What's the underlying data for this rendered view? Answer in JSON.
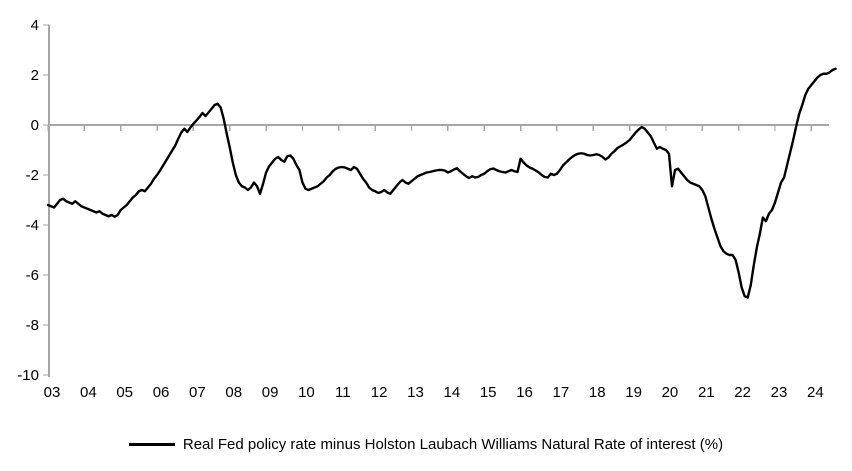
{
  "chart_data": {
    "type": "line",
    "title": "",
    "xlabel": "",
    "ylabel": "",
    "ylim": [
      -10,
      4
    ],
    "y_ticks": [
      4,
      2,
      0,
      -2,
      -4,
      -6,
      -8,
      -10
    ],
    "x_tick_labels": [
      "03",
      "04",
      "05",
      "06",
      "07",
      "08",
      "09",
      "10",
      "11",
      "12",
      "13",
      "14",
      "15",
      "16",
      "17",
      "18",
      "19",
      "20",
      "21",
      "22",
      "23",
      "24"
    ],
    "grid": false,
    "zero_line": true,
    "legend_position": "bottom",
    "line_color": "#000000",
    "axis_color": "#a6a6a6",
    "background_color": "#ffffff",
    "series": [
      {
        "name": "Real Fed policy rate minus Holston Laubach Williams Natural Rate of interest (%)",
        "color": "#000000",
        "x_start": "2003-01",
        "frequency": "monthly",
        "values": [
          -3.2,
          -3.25,
          -3.3,
          -3.15,
          -3.0,
          -2.95,
          -3.05,
          -3.1,
          -3.15,
          -3.05,
          -3.15,
          -3.25,
          -3.3,
          -3.35,
          -3.4,
          -3.45,
          -3.5,
          -3.45,
          -3.55,
          -3.6,
          -3.65,
          -3.6,
          -3.67,
          -3.6,
          -3.4,
          -3.3,
          -3.2,
          -3.05,
          -2.9,
          -2.8,
          -2.65,
          -2.6,
          -2.65,
          -2.5,
          -2.35,
          -2.15,
          -2.0,
          -1.82,
          -1.62,
          -1.42,
          -1.22,
          -1.02,
          -0.82,
          -0.55,
          -0.3,
          -0.15,
          -0.28,
          -0.1,
          0.05,
          0.18,
          0.32,
          0.48,
          0.36,
          0.5,
          0.65,
          0.8,
          0.85,
          0.7,
          0.25,
          -0.35,
          -0.9,
          -1.5,
          -2.0,
          -2.3,
          -2.45,
          -2.5,
          -2.6,
          -2.5,
          -2.3,
          -2.45,
          -2.75,
          -2.35,
          -1.9,
          -1.65,
          -1.5,
          -1.35,
          -1.28,
          -1.4,
          -1.47,
          -1.25,
          -1.22,
          -1.35,
          -1.6,
          -1.8,
          -2.3,
          -2.55,
          -2.6,
          -2.55,
          -2.5,
          -2.45,
          -2.35,
          -2.25,
          -2.1,
          -2.0,
          -1.85,
          -1.75,
          -1.7,
          -1.68,
          -1.7,
          -1.75,
          -1.8,
          -1.68,
          -1.75,
          -1.95,
          -2.15,
          -2.3,
          -2.5,
          -2.6,
          -2.65,
          -2.72,
          -2.68,
          -2.6,
          -2.7,
          -2.75,
          -2.6,
          -2.45,
          -2.3,
          -2.2,
          -2.3,
          -2.35,
          -2.25,
          -2.15,
          -2.05,
          -2.0,
          -1.95,
          -1.9,
          -1.88,
          -1.85,
          -1.82,
          -1.8,
          -1.8,
          -1.82,
          -1.9,
          -1.85,
          -1.78,
          -1.73,
          -1.85,
          -1.95,
          -2.05,
          -2.12,
          -2.05,
          -2.1,
          -2.08,
          -2.0,
          -1.95,
          -1.85,
          -1.77,
          -1.74,
          -1.8,
          -1.85,
          -1.88,
          -1.9,
          -1.85,
          -1.8,
          -1.85,
          -1.88,
          -1.35,
          -1.5,
          -1.62,
          -1.7,
          -1.75,
          -1.82,
          -1.9,
          -2.0,
          -2.08,
          -2.1,
          -1.95,
          -2.0,
          -1.95,
          -1.8,
          -1.62,
          -1.5,
          -1.38,
          -1.28,
          -1.2,
          -1.15,
          -1.13,
          -1.15,
          -1.2,
          -1.22,
          -1.2,
          -1.17,
          -1.2,
          -1.27,
          -1.38,
          -1.3,
          -1.15,
          -1.05,
          -0.92,
          -0.85,
          -0.78,
          -0.7,
          -0.6,
          -0.45,
          -0.3,
          -0.18,
          -0.08,
          -0.15,
          -0.3,
          -0.45,
          -0.7,
          -0.95,
          -0.88,
          -0.95,
          -1.0,
          -1.15,
          -2.45,
          -1.8,
          -1.75,
          -1.9,
          -2.05,
          -2.2,
          -2.3,
          -2.35,
          -2.4,
          -2.45,
          -2.6,
          -2.85,
          -3.3,
          -3.75,
          -4.15,
          -4.5,
          -4.85,
          -5.05,
          -5.15,
          -5.2,
          -5.2,
          -5.4,
          -5.9,
          -6.5,
          -6.85,
          -6.9,
          -6.4,
          -5.6,
          -4.9,
          -4.35,
          -3.7,
          -3.85,
          -3.55,
          -3.4,
          -3.1,
          -2.7,
          -2.3,
          -2.1,
          -1.6,
          -1.1,
          -0.6,
          -0.05,
          0.45,
          0.8,
          1.2,
          1.45,
          1.6,
          1.75,
          1.9,
          2.0,
          2.05,
          2.05,
          2.1,
          2.2,
          2.25
        ]
      }
    ]
  }
}
